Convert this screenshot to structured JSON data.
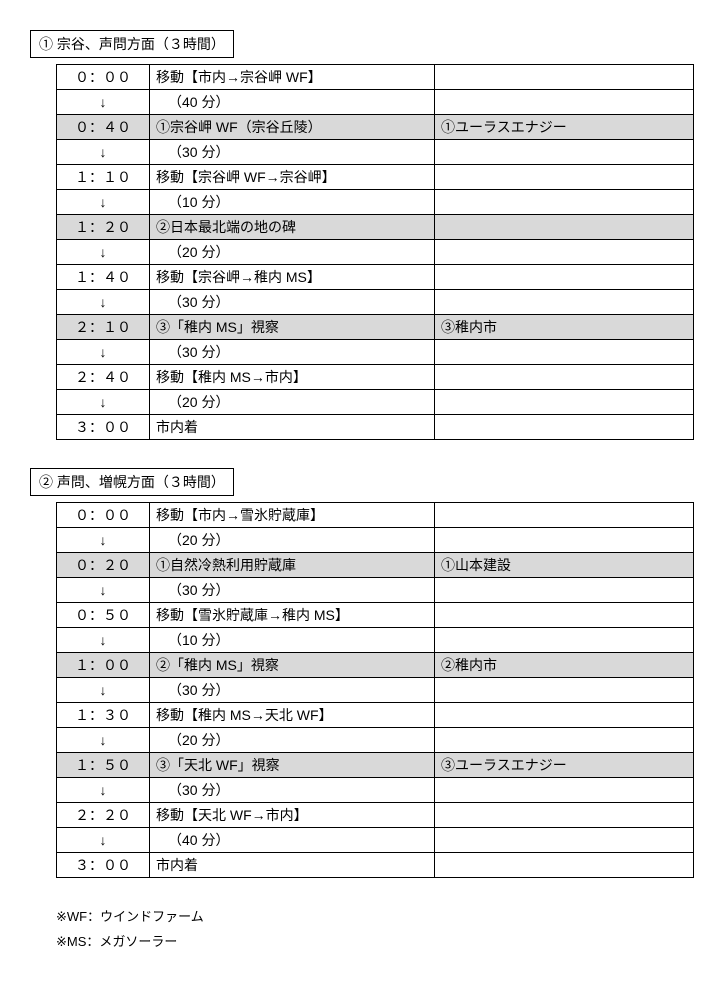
{
  "sections": [
    {
      "title": "① 宗谷、声問方面（３時間）",
      "rows": [
        {
          "time": "０：００",
          "desc": "移動【市内→宗谷岬 WF】",
          "note": "",
          "shaded": false,
          "indent": false
        },
        {
          "time": "↓",
          "desc": "（40 分）",
          "note": "",
          "shaded": false,
          "indent": true
        },
        {
          "time": "０：４０",
          "desc": "①宗谷岬 WF（宗谷丘陵）",
          "note": "①ユーラスエナジー",
          "shaded": true,
          "indent": false
        },
        {
          "time": "↓",
          "desc": "（30 分）",
          "note": "",
          "shaded": false,
          "indent": true
        },
        {
          "time": "１：１０",
          "desc": "移動【宗谷岬 WF→宗谷岬】",
          "note": "",
          "shaded": false,
          "indent": false
        },
        {
          "time": "↓",
          "desc": "（10 分）",
          "note": "",
          "shaded": false,
          "indent": true
        },
        {
          "time": "１：２０",
          "desc": "②日本最北端の地の碑",
          "note": "",
          "shaded": true,
          "indent": false
        },
        {
          "time": "↓",
          "desc": "（20 分）",
          "note": "",
          "shaded": false,
          "indent": true
        },
        {
          "time": "１：４０",
          "desc": "移動【宗谷岬→稚内 MS】",
          "note": "",
          "shaded": false,
          "indent": false
        },
        {
          "time": "↓",
          "desc": "（30 分）",
          "note": "",
          "shaded": false,
          "indent": true
        },
        {
          "time": "２：１０",
          "desc": "③「稚内 MS」視察",
          "note": "③稚内市",
          "shaded": true,
          "indent": false
        },
        {
          "time": "↓",
          "desc": "（30 分）",
          "note": "",
          "shaded": false,
          "indent": true
        },
        {
          "time": "２：４０",
          "desc": "移動【稚内 MS→市内】",
          "note": "",
          "shaded": false,
          "indent": false
        },
        {
          "time": "↓",
          "desc": "（20 分）",
          "note": "",
          "shaded": false,
          "indent": true
        },
        {
          "time": "３：００",
          "desc": "市内着",
          "note": "",
          "shaded": false,
          "indent": false
        }
      ]
    },
    {
      "title": "② 声問、増幌方面（３時間）",
      "rows": [
        {
          "time": "０：００",
          "desc": "移動【市内→雪氷貯蔵庫】",
          "note": "",
          "shaded": false,
          "indent": false
        },
        {
          "time": "↓",
          "desc": "（20 分）",
          "note": "",
          "shaded": false,
          "indent": true
        },
        {
          "time": "０：２０",
          "desc": "①自然冷熱利用貯蔵庫",
          "note": "①山本建設",
          "shaded": true,
          "indent": false
        },
        {
          "time": "↓",
          "desc": "（30 分）",
          "note": "",
          "shaded": false,
          "indent": true
        },
        {
          "time": "０：５０",
          "desc": "移動【雪氷貯蔵庫→稚内 MS】",
          "note": "",
          "shaded": false,
          "indent": false
        },
        {
          "time": "↓",
          "desc": "（10 分）",
          "note": "",
          "shaded": false,
          "indent": true
        },
        {
          "time": "１：００",
          "desc": "②「稚内 MS」視察",
          "note": "②稚内市",
          "shaded": true,
          "indent": false
        },
        {
          "time": "↓",
          "desc": "（30 分）",
          "note": "",
          "shaded": false,
          "indent": true
        },
        {
          "time": "１：３０",
          "desc": "移動【稚内 MS→天北 WF】",
          "note": "",
          "shaded": false,
          "indent": false
        },
        {
          "time": "↓",
          "desc": "（20 分）",
          "note": "",
          "shaded": false,
          "indent": true
        },
        {
          "time": "１：５０",
          "desc": "③「天北 WF」視察",
          "note": "③ユーラスエナジー",
          "shaded": true,
          "indent": false
        },
        {
          "time": "↓",
          "desc": "（30 分）",
          "note": "",
          "shaded": false,
          "indent": true
        },
        {
          "time": "２：２０",
          "desc": "移動【天北 WF→市内】",
          "note": "",
          "shaded": false,
          "indent": false
        },
        {
          "time": "↓",
          "desc": "（40 分）",
          "note": "",
          "shaded": false,
          "indent": true
        },
        {
          "time": "３：００",
          "desc": "市内着",
          "note": "",
          "shaded": false,
          "indent": false
        }
      ]
    }
  ],
  "footnotes": [
    "※WF：ウインドファーム",
    "※MS：メガソーラー"
  ],
  "colors": {
    "shaded_bg": "#d9d9d9",
    "border": "#000000",
    "background": "#ffffff",
    "text": "#000000"
  }
}
